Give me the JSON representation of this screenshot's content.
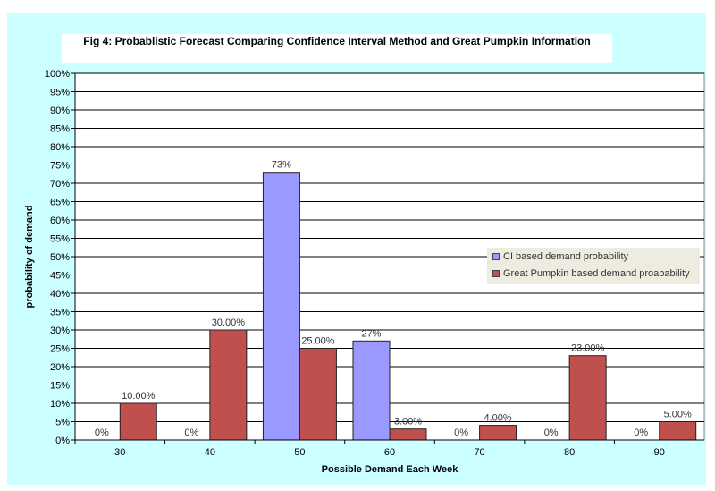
{
  "chart_data": {
    "type": "bar",
    "title": "Fig 4: Probablistic Forecast Comparing Confidence Interval Method and Great Pumpkin Information",
    "xlabel": "Possible Demand Each Week",
    "ylabel": "probability of demand",
    "categories": [
      "30",
      "40",
      "50",
      "60",
      "70",
      "80",
      "90"
    ],
    "ylim": [
      0,
      100
    ],
    "yticks": [
      "0%",
      "5%",
      "10%",
      "15%",
      "20%",
      "25%",
      "30%",
      "35%",
      "40%",
      "45%",
      "50%",
      "55%",
      "60%",
      "65%",
      "70%",
      "75%",
      "80%",
      "85%",
      "90%",
      "95%",
      "100%"
    ],
    "grid": true,
    "legend_position": "right",
    "series": [
      {
        "name": "CI based demand probability",
        "color": "#9999ff",
        "values": [
          0,
          0,
          73,
          27,
          0,
          0,
          0
        ],
        "labels": [
          "0%",
          "0%",
          "73%",
          "27%",
          "0%",
          "0%",
          "0%"
        ]
      },
      {
        "name": "Great Pumpkin based demand proabability",
        "color": "#c0504d",
        "values": [
          10,
          30,
          25,
          3,
          4,
          23,
          5
        ],
        "labels": [
          "10.00%",
          "30.00%",
          "25.00%",
          "3.00%",
          "4.00%",
          "23.00%",
          "5.00%"
        ]
      }
    ]
  },
  "background_color": "#ccffff"
}
